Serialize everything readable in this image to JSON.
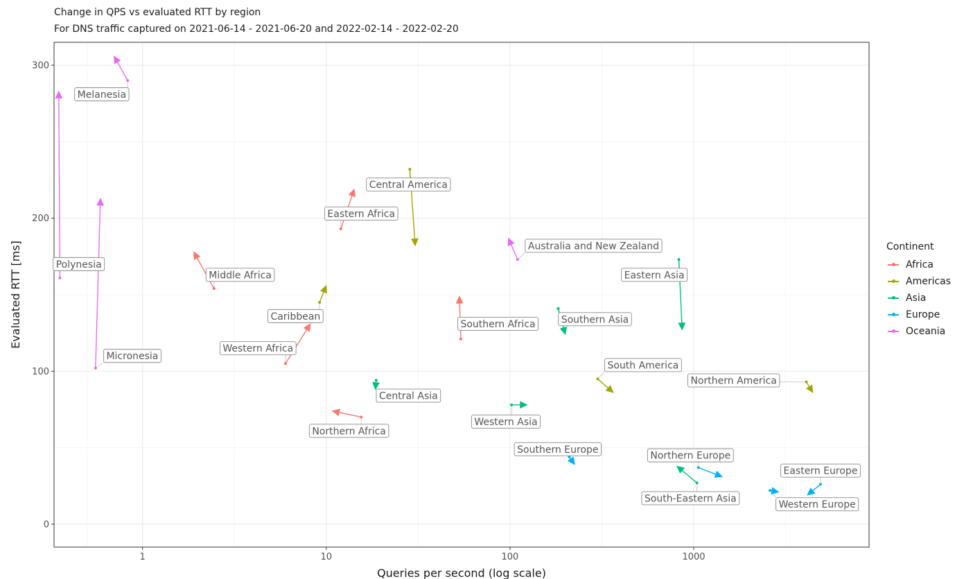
{
  "chart_data": {
    "type": "scatter",
    "title": "Change in QPS vs evaluated RTT by region",
    "subtitle": "For DNS traffic captured on 2021-06-14 - 2021-06-20 and 2022-02-14 - 2022-02-20",
    "xlabel": "Queries per second (log scale)",
    "ylabel": "Evaluated RTT [ms]",
    "x_scale": "log10",
    "xlim": [
      0.33,
      9000
    ],
    "ylim": [
      -15,
      315
    ],
    "x_ticks": [
      1,
      10,
      100,
      1000
    ],
    "x_tick_labels": [
      "1",
      "10",
      "100",
      "1000"
    ],
    "y_ticks": [
      0,
      100,
      200,
      300
    ],
    "y_tick_labels": [
      "0",
      "100",
      "200",
      "300"
    ],
    "grid": true,
    "legend": {
      "title": "Continent",
      "position": "right",
      "entries": [
        {
          "name": "Africa",
          "color": "#F8766D"
        },
        {
          "name": "Americas",
          "color": "#A3A500"
        },
        {
          "name": "Asia",
          "color": "#00BF7D"
        },
        {
          "name": "Europe",
          "color": "#00B0F6"
        },
        {
          "name": "Oceania",
          "color": "#E76BF3"
        }
      ]
    },
    "series": [
      {
        "name": "Africa",
        "regions": [
          {
            "region": "Middle Africa",
            "x_2021": 2.45,
            "y_2021": 154,
            "x_2022": 1.9,
            "y_2022": 178
          },
          {
            "region": "Western Africa",
            "x_2021": 6.0,
            "y_2021": 105,
            "x_2022": 8.2,
            "y_2022": 131
          },
          {
            "region": "Eastern Africa",
            "x_2021": 12.0,
            "y_2021": 193,
            "x_2022": 14.2,
            "y_2022": 219
          },
          {
            "region": "Northern Africa",
            "x_2021": 15.5,
            "y_2021": 70,
            "x_2022": 10.8,
            "y_2022": 74
          },
          {
            "region": "Southern Africa",
            "x_2021": 54,
            "y_2021": 121,
            "x_2022": 53,
            "y_2022": 149
          }
        ]
      },
      {
        "name": "Americas",
        "regions": [
          {
            "region": "Caribbean",
            "x_2021": 9.2,
            "y_2021": 145,
            "x_2022": 10.0,
            "y_2022": 156
          },
          {
            "region": "Central America",
            "x_2021": 28.5,
            "y_2021": 232,
            "x_2022": 30.5,
            "y_2022": 182
          },
          {
            "region": "South America",
            "x_2021": 300,
            "y_2021": 95,
            "x_2022": 365,
            "y_2022": 86
          },
          {
            "region": "Northern America",
            "x_2021": 4100,
            "y_2021": 93,
            "x_2022": 4450,
            "y_2022": 86
          }
        ]
      },
      {
        "name": "Asia",
        "regions": [
          {
            "region": "Central Asia",
            "x_2021": 18.7,
            "y_2021": 94,
            "x_2022": 18.5,
            "y_2022": 88
          },
          {
            "region": "Western Asia",
            "x_2021": 102,
            "y_2021": 78,
            "x_2022": 124,
            "y_2022": 78
          },
          {
            "region": "Southern Asia",
            "x_2021": 183,
            "y_2021": 141,
            "x_2022": 200,
            "y_2022": 124
          },
          {
            "region": "Eastern Asia",
            "x_2021": 830,
            "y_2021": 173,
            "x_2022": 865,
            "y_2022": 127
          },
          {
            "region": "South-Eastern Asia",
            "x_2021": 1040,
            "y_2021": 27,
            "x_2022": 810,
            "y_2022": 38
          }
        ]
      },
      {
        "name": "Europe",
        "regions": [
          {
            "region": "Southern Europe",
            "x_2021": 210,
            "y_2021": 44,
            "x_2022": 225,
            "y_2022": 39
          },
          {
            "region": "Northern Europe",
            "x_2021": 1060,
            "y_2021": 37,
            "x_2022": 1430,
            "y_2022": 31
          },
          {
            "region": "Eastern Europe",
            "x_2021": 4900,
            "y_2021": 26,
            "x_2022": 4150,
            "y_2022": 19
          },
          {
            "region": "Western Europe",
            "x_2021": 2600,
            "y_2021": 22,
            "x_2022": 2900,
            "y_2022": 21
          }
        ]
      },
      {
        "name": "Oceania",
        "regions": [
          {
            "region": "Melanesia",
            "x_2021": 0.83,
            "y_2021": 290,
            "x_2022": 0.7,
            "y_2022": 306
          },
          {
            "region": "Polynesia",
            "x_2021": 0.355,
            "y_2021": 161,
            "x_2022": 0.35,
            "y_2022": 283
          },
          {
            "region": "Micronesia",
            "x_2021": 0.555,
            "y_2021": 102,
            "x_2022": 0.59,
            "y_2022": 213
          },
          {
            "region": "Australia and New Zealand",
            "x_2021": 110,
            "y_2021": 173,
            "x_2022": 98,
            "y_2022": 187
          }
        ]
      }
    ],
    "annotations": [
      {
        "text": "Melanesia",
        "x": 0.6,
        "y": 281
      },
      {
        "text": "Polynesia",
        "x": 0.45,
        "y": 170
      },
      {
        "text": "Micronesia",
        "x": 0.88,
        "y": 110
      },
      {
        "text": "Middle Africa",
        "x": 3.4,
        "y": 163
      },
      {
        "text": "Caribbean",
        "x": 6.8,
        "y": 136
      },
      {
        "text": "Western Africa",
        "x": 4.25,
        "y": 115
      },
      {
        "text": "Central America",
        "x": 28,
        "y": 222
      },
      {
        "text": "Eastern Africa",
        "x": 15.5,
        "y": 203
      },
      {
        "text": "Central Asia",
        "x": 28,
        "y": 84
      },
      {
        "text": "Northern Africa",
        "x": 13.3,
        "y": 61
      },
      {
        "text": "Australia and New Zealand",
        "x": 285,
        "y": 182
      },
      {
        "text": "Southern Africa",
        "x": 86,
        "y": 131
      },
      {
        "text": "Southern Asia",
        "x": 290,
        "y": 134
      },
      {
        "text": "Eastern Asia",
        "x": 610,
        "y": 163
      },
      {
        "text": "South America",
        "x": 530,
        "y": 104
      },
      {
        "text": "Western Asia",
        "x": 95,
        "y": 67
      },
      {
        "text": "Southern Europe",
        "x": 182,
        "y": 49
      },
      {
        "text": "Northern Europe",
        "x": 960,
        "y": 45
      },
      {
        "text": "South-Eastern Asia",
        "x": 960,
        "y": 17
      },
      {
        "text": "Northern America",
        "x": 1650,
        "y": 94
      },
      {
        "text": "Eastern Europe",
        "x": 4900,
        "y": 35
      },
      {
        "text": "Western Europe",
        "x": 4700,
        "y": 13
      }
    ]
  }
}
